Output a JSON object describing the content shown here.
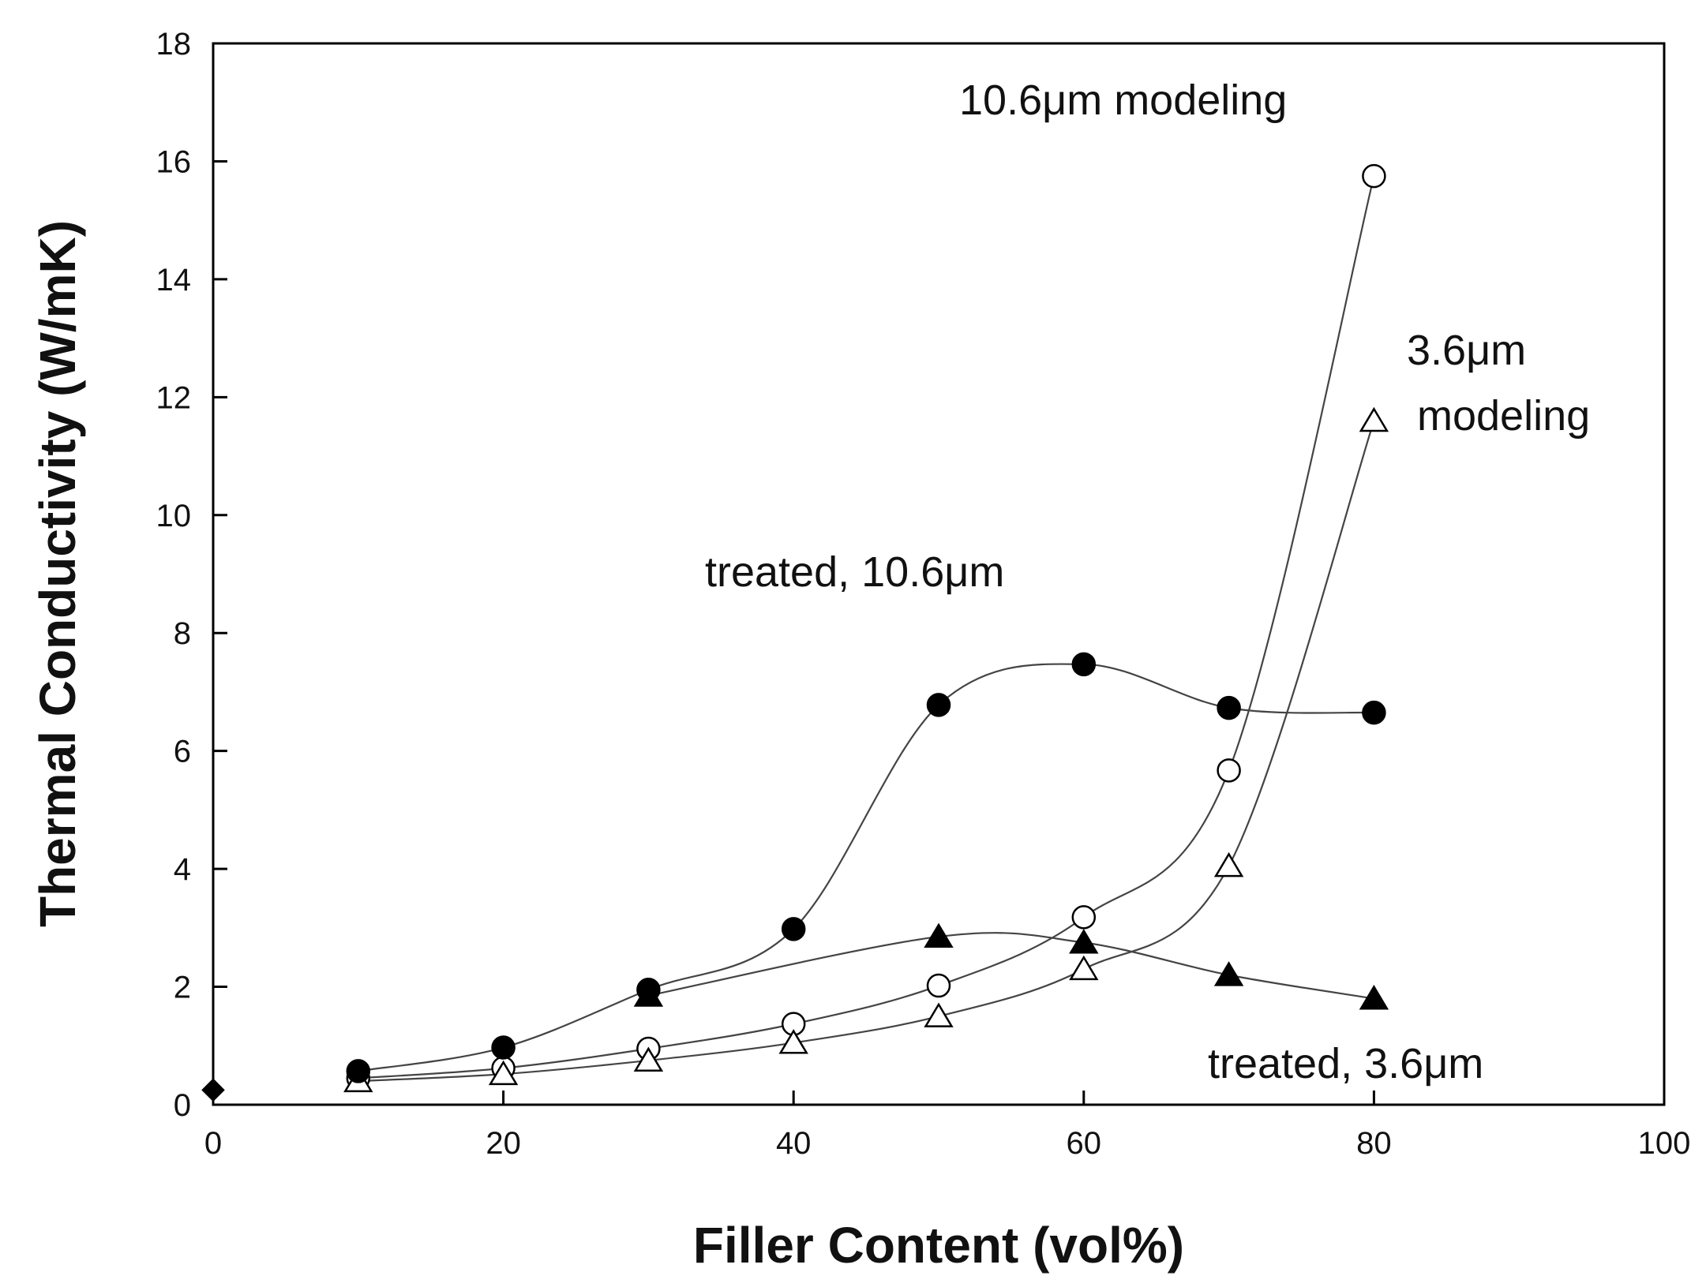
{
  "chart_data": {
    "type": "scatter",
    "xlabel": "Filler Content (vol%)",
    "ylabel": "Thermal Conductivity (W/mK)",
    "xlim": [
      0,
      100
    ],
    "ylim": [
      0,
      18
    ],
    "x_ticks": [
      "0",
      "20",
      "40",
      "60",
      "80",
      "100"
    ],
    "y_ticks": [
      "0",
      "2",
      "4",
      "6",
      "8",
      "10",
      "12",
      "14",
      "16",
      "18"
    ],
    "grid": false,
    "legend": "none",
    "series": [
      {
        "name": "treated, 10.6μm",
        "marker": "filled-circle",
        "x": [
          10,
          20,
          30,
          40,
          50,
          60,
          70,
          80
        ],
        "y": [
          0.57,
          0.97,
          1.95,
          2.98,
          6.78,
          7.47,
          6.73,
          6.65
        ]
      },
      {
        "name": "treated, 3.6μm",
        "marker": "filled-triangle",
        "x": [
          30,
          50,
          60,
          70,
          80
        ],
        "y": [
          1.85,
          2.85,
          2.75,
          2.2,
          1.8
        ]
      },
      {
        "name": "10.6μm modeling",
        "marker": "open-circle",
        "x": [
          10,
          20,
          30,
          40,
          50,
          60,
          70,
          80
        ],
        "y": [
          0.45,
          0.62,
          0.95,
          1.37,
          2.02,
          3.18,
          5.67,
          15.75
        ]
      },
      {
        "name": "3.6μm modeling",
        "marker": "open-triangle",
        "x": [
          10,
          20,
          30,
          40,
          50,
          60,
          70,
          80
        ],
        "y": [
          0.4,
          0.52,
          0.75,
          1.05,
          1.5,
          2.3,
          4.05,
          11.6
        ]
      }
    ],
    "extra_points": [
      {
        "marker": "filled-diamond",
        "x": 0,
        "y": 0.25
      }
    ],
    "annotations": [
      {
        "text": "10.6μm modeling"
      },
      {
        "text": "3.6μm"
      },
      {
        "text": "modeling"
      },
      {
        "text": "treated, 10.6μm"
      },
      {
        "text": "treated, 3.6μm"
      }
    ],
    "colors": {
      "marker": "#000000",
      "curve": "#444444",
      "axis": "#000000"
    }
  }
}
